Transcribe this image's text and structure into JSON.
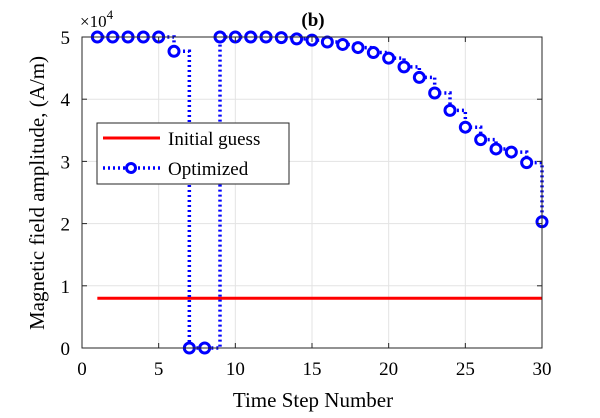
{
  "chart_data": {
    "type": "line",
    "title": "(b)",
    "xlabel": "Time Step Number",
    "ylabel": "Magnetic field amplitude, (A/m)",
    "y_multiplier_label": "×10",
    "y_multiplier_exp": "4",
    "xlim": [
      0,
      30
    ],
    "ylim": [
      0,
      5
    ],
    "x_ticks": [
      0,
      5,
      10,
      15,
      20,
      25,
      30
    ],
    "y_ticks": [
      0,
      1,
      2,
      3,
      4,
      5
    ],
    "grid": true,
    "legend_position": "center-left",
    "series": [
      {
        "name": "Initial guess",
        "color": "#ff0000",
        "style": "solid",
        "step": false,
        "x": [
          1,
          30
        ],
        "values": [
          0.8,
          0.8
        ]
      },
      {
        "name": "Optimized",
        "color": "#0000ff",
        "style": "dotted-step",
        "marker": "circle",
        "step": true,
        "x": [
          1,
          2,
          3,
          4,
          5,
          6,
          7,
          8,
          9,
          10,
          11,
          12,
          13,
          14,
          15,
          16,
          17,
          18,
          19,
          20,
          21,
          22,
          23,
          24,
          25,
          26,
          27,
          28,
          29,
          30
        ],
        "values": [
          5.0,
          5.0,
          5.0,
          5.0,
          5.0,
          4.77,
          0,
          0,
          5.0,
          5.0,
          5.0,
          5.0,
          4.99,
          4.97,
          4.95,
          4.92,
          4.88,
          4.83,
          4.75,
          4.66,
          4.52,
          4.35,
          4.1,
          3.82,
          3.55,
          3.35,
          3.2,
          3.15,
          2.98,
          2.03
        ]
      }
    ]
  }
}
